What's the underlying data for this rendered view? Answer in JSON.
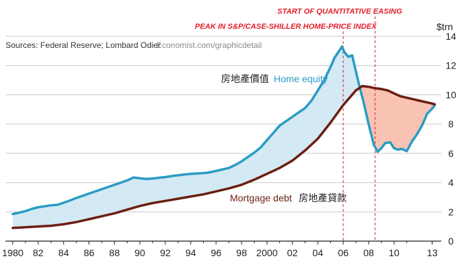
{
  "chart_data": {
    "type": "line",
    "unit_label": "$trn",
    "source": "Sources: Federal Reserve; Lombard Odier",
    "url": "Economist.com/graphicdetail",
    "ylim": [
      0,
      14
    ],
    "y_ticks": [
      0,
      2,
      4,
      6,
      8,
      10,
      12,
      14
    ],
    "xlim": [
      1979.75,
      2013.5
    ],
    "x_ticks": [
      {
        "year": 1980,
        "label": "1980"
      },
      {
        "year": 1982,
        "label": "82"
      },
      {
        "year": 1984,
        "label": "84"
      },
      {
        "year": 1986,
        "label": "86"
      },
      {
        "year": 1988,
        "label": "88"
      },
      {
        "year": 1990,
        "label": "90"
      },
      {
        "year": 1992,
        "label": "92"
      },
      {
        "year": 1994,
        "label": "94"
      },
      {
        "year": 1996,
        "label": "96"
      },
      {
        "year": 1998,
        "label": "98"
      },
      {
        "year": 2000,
        "label": "2000"
      },
      {
        "year": 2002,
        "label": "02"
      },
      {
        "year": 2004,
        "label": "04"
      },
      {
        "year": 2006,
        "label": "06"
      },
      {
        "year": 2008,
        "label": "08"
      },
      {
        "year": 2010,
        "label": "10"
      },
      {
        "year": 2013,
        "label": "13"
      }
    ],
    "grid": true,
    "events": [
      {
        "year": 2006.0,
        "label": "PEAK IN S&P/CASE-SHILLER HOME-PRICE INDEX"
      },
      {
        "year": 2008.5,
        "label": "START OF QUANTITATIVE EASING"
      }
    ],
    "series": [
      {
        "name": "房地產價值 Home equity",
        "label_zh": "房地產價值",
        "label_en": "Home equity",
        "color": "#2a9cc4",
        "x": [
          1980,
          1980.5,
          1981,
          1981.5,
          1982,
          1982.5,
          1983,
          1983.5,
          1984,
          1984.5,
          1985,
          1985.5,
          1986,
          1986.5,
          1987,
          1987.5,
          1988,
          1988.5,
          1989,
          1989.5,
          1990,
          1990.5,
          1991,
          1991.5,
          1992,
          1992.5,
          1993,
          1993.5,
          1994,
          1994.5,
          1995,
          1995.5,
          1996,
          1996.5,
          1997,
          1997.5,
          1998,
          1998.5,
          1999,
          1999.5,
          2000,
          2000.5,
          2001,
          2001.5,
          2002,
          2002.5,
          2003,
          2003.5,
          2004,
          2004.5,
          2005,
          2005.3,
          2005.6,
          2005.9,
          2006.1,
          2006.4,
          2006.7,
          2007,
          2007.3,
          2007.6,
          2008,
          2008.4,
          2008.7,
          2009,
          2009.3,
          2009.7,
          2010,
          2010.3,
          2010.6,
          2011,
          2011.4,
          2011.8,
          2012.2,
          2012.6,
          2013,
          2013.2
        ],
        "y": [
          1.85,
          1.95,
          2.05,
          2.2,
          2.32,
          2.38,
          2.45,
          2.48,
          2.62,
          2.78,
          2.95,
          3.1,
          3.25,
          3.4,
          3.55,
          3.7,
          3.85,
          4.0,
          4.15,
          4.35,
          4.3,
          4.25,
          4.28,
          4.33,
          4.38,
          4.45,
          4.5,
          4.55,
          4.6,
          4.62,
          4.65,
          4.7,
          4.8,
          4.9,
          5.0,
          5.2,
          5.45,
          5.75,
          6.05,
          6.4,
          6.9,
          7.4,
          7.9,
          8.2,
          8.5,
          8.8,
          9.1,
          9.6,
          10.3,
          11.0,
          11.9,
          12.5,
          12.9,
          13.3,
          12.9,
          12.6,
          12.7,
          11.6,
          10.5,
          9.5,
          8.0,
          6.6,
          6.1,
          6.35,
          6.7,
          6.75,
          6.35,
          6.25,
          6.3,
          6.15,
          6.8,
          7.3,
          7.9,
          8.7,
          9.05,
          9.3
        ]
      },
      {
        "name": "Mortgage debt 房地產貸款",
        "label_zh": "房地產貸款",
        "label_en": "Mortgage debt",
        "color": "#6b1e12",
        "x": [
          1980,
          1981,
          1982,
          1983,
          1984,
          1985,
          1986,
          1987,
          1988,
          1989,
          1990,
          1991,
          1992,
          1993,
          1994,
          1995,
          1996,
          1997,
          1998,
          1999,
          2000,
          2001,
          2002,
          2003,
          2004,
          2005,
          2006,
          2007,
          2007.5,
          2008,
          2008.5,
          2009,
          2009.5,
          2010,
          2010.5,
          2011,
          2011.5,
          2012,
          2012.5,
          2013,
          2013.2
        ],
        "y": [
          0.9,
          0.95,
          1.0,
          1.05,
          1.15,
          1.3,
          1.5,
          1.7,
          1.9,
          2.15,
          2.4,
          2.6,
          2.75,
          2.9,
          3.05,
          3.2,
          3.4,
          3.6,
          3.85,
          4.2,
          4.6,
          5.0,
          5.5,
          6.2,
          7.0,
          8.1,
          9.3,
          10.3,
          10.6,
          10.55,
          10.45,
          10.4,
          10.3,
          10.1,
          9.9,
          9.8,
          9.7,
          9.6,
          9.5,
          9.4,
          9.35
        ]
      }
    ]
  }
}
